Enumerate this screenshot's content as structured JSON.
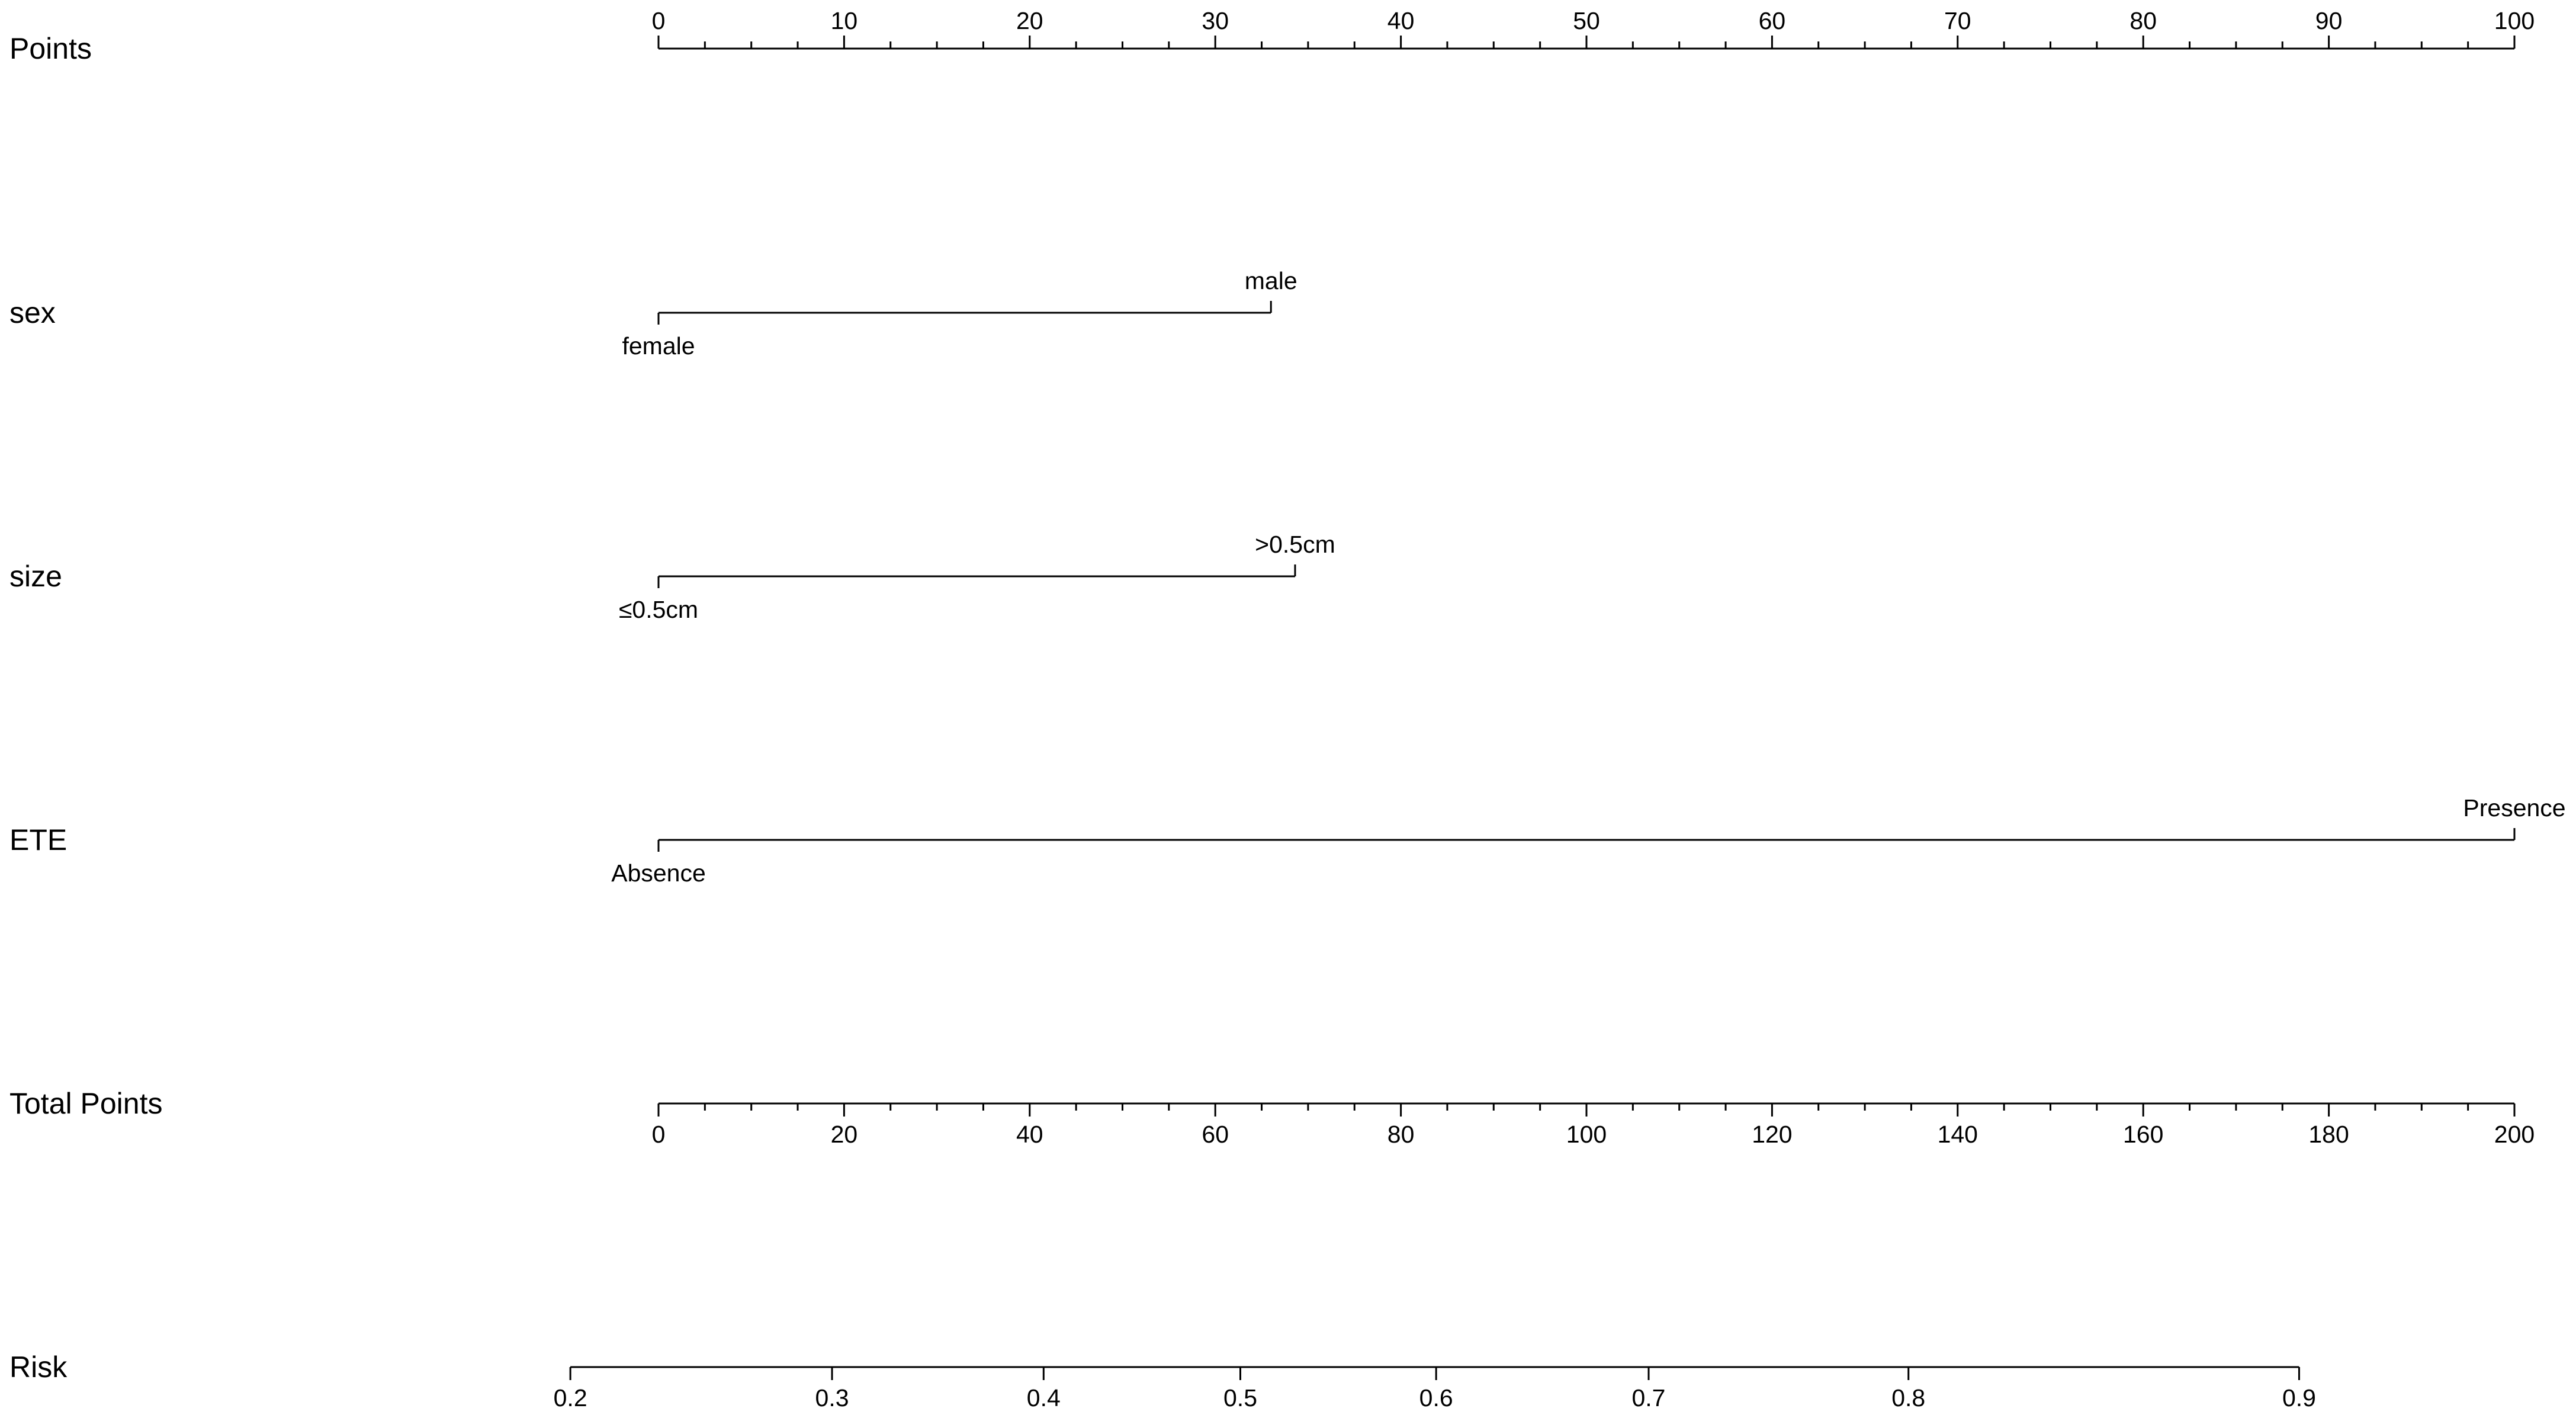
{
  "chart_data": {
    "type": "nomogram",
    "rows": [
      {
        "label": "Points",
        "kind": "scale",
        "min": 0,
        "max": 100,
        "major_ticks": [
          0,
          10,
          20,
          30,
          40,
          50,
          60,
          70,
          80,
          90,
          100
        ],
        "minor_step": 2.5,
        "tick_labels": [
          "0",
          "10",
          "20",
          "30",
          "40",
          "50",
          "60",
          "70",
          "80",
          "90",
          "100"
        ],
        "labels_position": "above"
      },
      {
        "label": "sex",
        "kind": "categorical",
        "levels": [
          {
            "name": "female",
            "points": 0
          },
          {
            "name": "male",
            "points": 33
          }
        ]
      },
      {
        "label": "size",
        "kind": "categorical",
        "levels": [
          {
            "name": "≤0.5cm",
            "points": 0
          },
          {
            "name": ">0.5cm",
            "points": 34.3
          }
        ]
      },
      {
        "label": "ETE",
        "kind": "categorical",
        "levels": [
          {
            "name": "Absence",
            "points": 0
          },
          {
            "name": "Presence",
            "points": 100
          }
        ]
      },
      {
        "label": "Total Points",
        "kind": "scale",
        "min": 0,
        "max": 200,
        "major_ticks": [
          0,
          20,
          40,
          60,
          80,
          100,
          120,
          140,
          160,
          180,
          200
        ],
        "minor_step": 5,
        "tick_labels": [
          "0",
          "20",
          "40",
          "60",
          "80",
          "100",
          "120",
          "140",
          "160",
          "180",
          "200"
        ],
        "labels_position": "below"
      },
      {
        "label": "Risk",
        "kind": "risk",
        "major_ticks": [
          0.2,
          0.3,
          0.4,
          0.5,
          0.6,
          0.7,
          0.8,
          0.9
        ],
        "tick_labels": [
          "0.2",
          "0.3",
          "0.4",
          "0.5",
          "0.6",
          "0.7",
          "0.8",
          "0.9"
        ],
        "total_points_at_ticks": [
          -9.5,
          18.7,
          41.5,
          62.7,
          83.8,
          106.7,
          134.7,
          176.8
        ],
        "labels_position": "below"
      }
    ],
    "grid": false
  }
}
